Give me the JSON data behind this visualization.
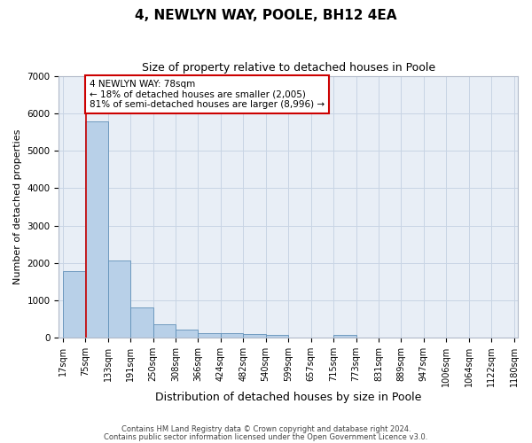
{
  "title": "4, NEWLYN WAY, POOLE, BH12 4EA",
  "subtitle": "Size of property relative to detached houses in Poole",
  "xlabel": "Distribution of detached houses by size in Poole",
  "ylabel": "Number of detached properties",
  "property_size": 78,
  "annotation_line1": "4 NEWLYN WAY: 78sqm",
  "annotation_line2": "← 18% of detached houses are smaller (2,005)",
  "annotation_line3": "81% of semi-detached houses are larger (8,996) →",
  "footnote1": "Contains HM Land Registry data © Crown copyright and database right 2024.",
  "footnote2": "Contains public sector information licensed under the Open Government Licence v3.0.",
  "bar_edges": [
    17,
    75,
    133,
    191,
    250,
    308,
    366,
    424,
    482,
    540,
    599,
    657,
    715,
    773,
    831,
    889,
    947,
    1006,
    1064,
    1122,
    1180
  ],
  "bar_heights": [
    1780,
    5780,
    2060,
    810,
    360,
    225,
    125,
    115,
    95,
    70,
    0,
    0,
    75,
    0,
    0,
    0,
    0,
    0,
    0,
    0
  ],
  "bar_color": "#b8d0e8",
  "bar_edge_color": "#6090b8",
  "grid_color": "#c8d4e4",
  "background_color": "#e8eef6",
  "red_line_color": "#cc0000",
  "annotation_box_color": "#cc0000",
  "ylim": [
    0,
    7000
  ],
  "yticks": [
    0,
    1000,
    2000,
    3000,
    4000,
    5000,
    6000,
    7000
  ],
  "title_fontsize": 11,
  "subtitle_fontsize": 9,
  "ylabel_fontsize": 8,
  "xlabel_fontsize": 9,
  "tick_fontsize": 7,
  "footnote_fontsize": 6
}
